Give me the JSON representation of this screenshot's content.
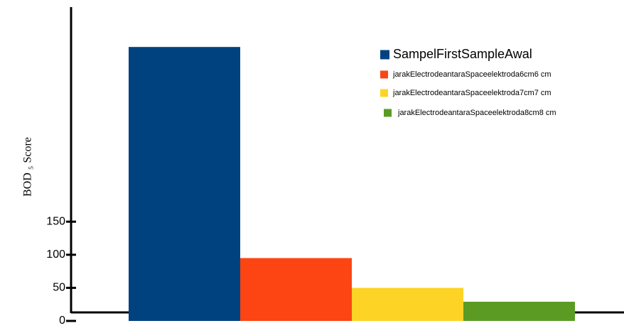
{
  "chart_data": {
    "type": "bar",
    "y_label": "BOD ₅ Score",
    "categories": [
      "SampelFirstSampleAwal",
      "jarakElectrodeantaraSpaceelektroda6cm6 cm",
      "jarakElectrodeantaraSpaceelektroda7cm7 cm",
      "jarakElectrodeantaraSpaceelektroda8cm8 cm"
    ],
    "values": [
      414,
      95,
      50,
      29
    ],
    "colors": [
      "#00427f",
      "#fc4512",
      "#fdd426",
      "#5b9b24"
    ],
    "ylim": [
      0,
      485
    ],
    "yticks": [
      0,
      50,
      100,
      150
    ],
    "grid": false
  }
}
